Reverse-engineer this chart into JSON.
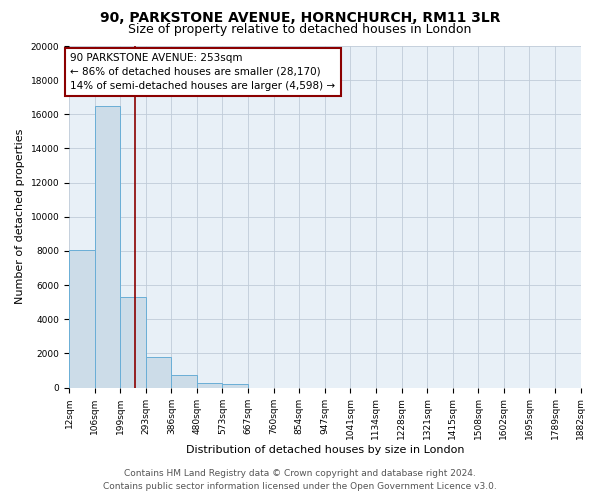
{
  "title": "90, PARKSTONE AVENUE, HORNCHURCH, RM11 3LR",
  "subtitle": "Size of property relative to detached houses in London",
  "xlabel": "Distribution of detached houses by size in London",
  "ylabel": "Number of detached properties",
  "bin_labels": [
    "12sqm",
    "106sqm",
    "199sqm",
    "293sqm",
    "386sqm",
    "480sqm",
    "573sqm",
    "667sqm",
    "760sqm",
    "854sqm",
    "947sqm",
    "1041sqm",
    "1134sqm",
    "1228sqm",
    "1321sqm",
    "1415sqm",
    "1508sqm",
    "1602sqm",
    "1695sqm",
    "1789sqm",
    "1882sqm"
  ],
  "bin_edges": [
    12,
    106,
    199,
    293,
    386,
    480,
    573,
    667,
    760,
    854,
    947,
    1041,
    1134,
    1228,
    1321,
    1415,
    1508,
    1602,
    1695,
    1789,
    1882
  ],
  "bar_values": [
    8050,
    16500,
    5300,
    1800,
    750,
    250,
    230,
    0,
    0,
    0,
    0,
    0,
    0,
    0,
    0,
    0,
    0,
    0,
    0,
    0
  ],
  "bar_color": "#ccdce8",
  "bar_edge_color": "#6aaed6",
  "vline_x": 253,
  "vline_color": "#8B0000",
  "ylim": [
    0,
    20000
  ],
  "yticks": [
    0,
    2000,
    4000,
    6000,
    8000,
    10000,
    12000,
    14000,
    16000,
    18000,
    20000
  ],
  "annotation_title": "90 PARKSTONE AVENUE: 253sqm",
  "annotation_line1": "← 86% of detached houses are smaller (28,170)",
  "annotation_line2": "14% of semi-detached houses are larger (4,598) →",
  "annotation_box_color": "#ffffff",
  "annotation_box_edge_color": "#8B0000",
  "background_color": "#ffffff",
  "plot_bg_color": "#e8f0f7",
  "grid_color": "#c0ccd8",
  "footer_line1": "Contains HM Land Registry data © Crown copyright and database right 2024.",
  "footer_line2": "Contains public sector information licensed under the Open Government Licence v3.0.",
  "title_fontsize": 10,
  "subtitle_fontsize": 9,
  "axis_label_fontsize": 8,
  "tick_fontsize": 6.5,
  "annotation_fontsize": 7.5,
  "footer_fontsize": 6.5
}
